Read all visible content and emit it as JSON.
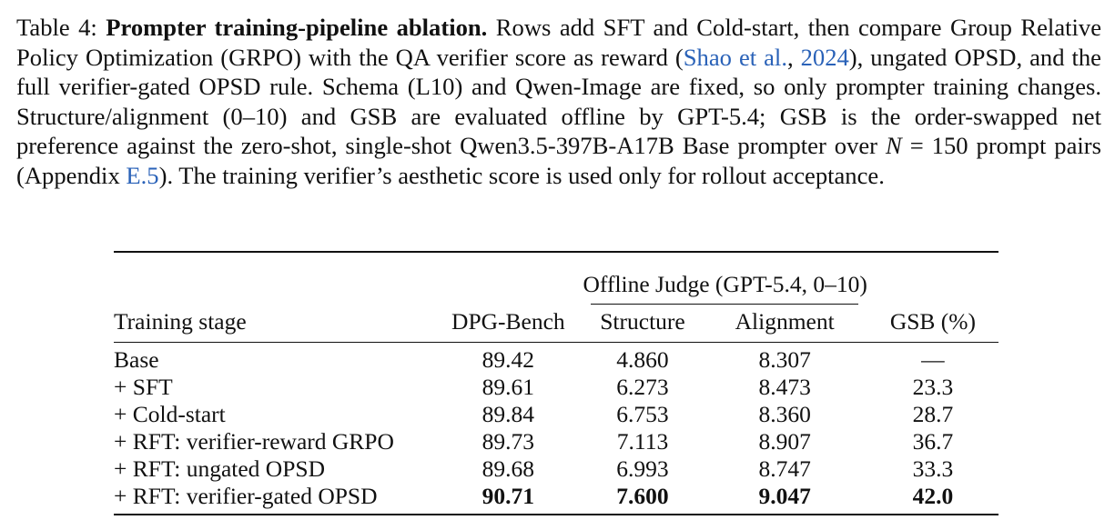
{
  "caption": {
    "label": "Table 4:",
    "title": "Prompter training-pipeline ablation.",
    "text_1": " Rows add SFT and Cold-start, then compare Group Relative Policy Optimization (GRPO) with the QA verifier score as reward (",
    "cite_author": "Shao et al.",
    "cite_sep": ", ",
    "cite_year": "2024",
    "text_2": "), ungated OPSD, and the full verifier-gated OPSD rule. Schema (L10) and Qwen-Image are fixed, so only prompter training changes. Structure/alignment (0–10) and GSB are evaluated offline by GPT-5.4; GSB is the order-swapped net preference against the zero-shot, single-shot Qwen3.5-397B-A17B Base prompter over ",
    "math": "N",
    "text_3": " = 150 prompt pairs (Appendix ",
    "appendix_ref": "E.5",
    "text_4": "). The training verifier’s aesthetic score is used only for rollout acceptance."
  },
  "table": {
    "group_header": "Offline Judge (GPT-5.4, 0–10)",
    "headers": {
      "stage": "Training stage",
      "dpg": "DPG-Bench",
      "structure": "Structure",
      "alignment": "Alignment",
      "gsb": "GSB (%)"
    },
    "rows": [
      {
        "stage": "Base",
        "dpg": "89.42",
        "structure": "4.860",
        "alignment": "8.307",
        "gsb": "—"
      },
      {
        "stage": "+ SFT",
        "dpg": "89.61",
        "structure": "6.273",
        "alignment": "8.473",
        "gsb": "23.3"
      },
      {
        "stage": "+ Cold-start",
        "dpg": "89.84",
        "structure": "6.753",
        "alignment": "8.360",
        "gsb": "28.7"
      },
      {
        "stage": "+ RFT: verifier-reward GRPO",
        "dpg": "89.73",
        "structure": "7.113",
        "alignment": "8.907",
        "gsb": "36.7"
      },
      {
        "stage": "+ RFT: ungated OPSD",
        "dpg": "89.68",
        "structure": "6.993",
        "alignment": "8.747",
        "gsb": "33.3"
      },
      {
        "stage": "+ RFT: verifier-gated OPSD",
        "dpg": "90.71",
        "structure": "7.600",
        "alignment": "9.047",
        "gsb": "42.0"
      }
    ]
  }
}
